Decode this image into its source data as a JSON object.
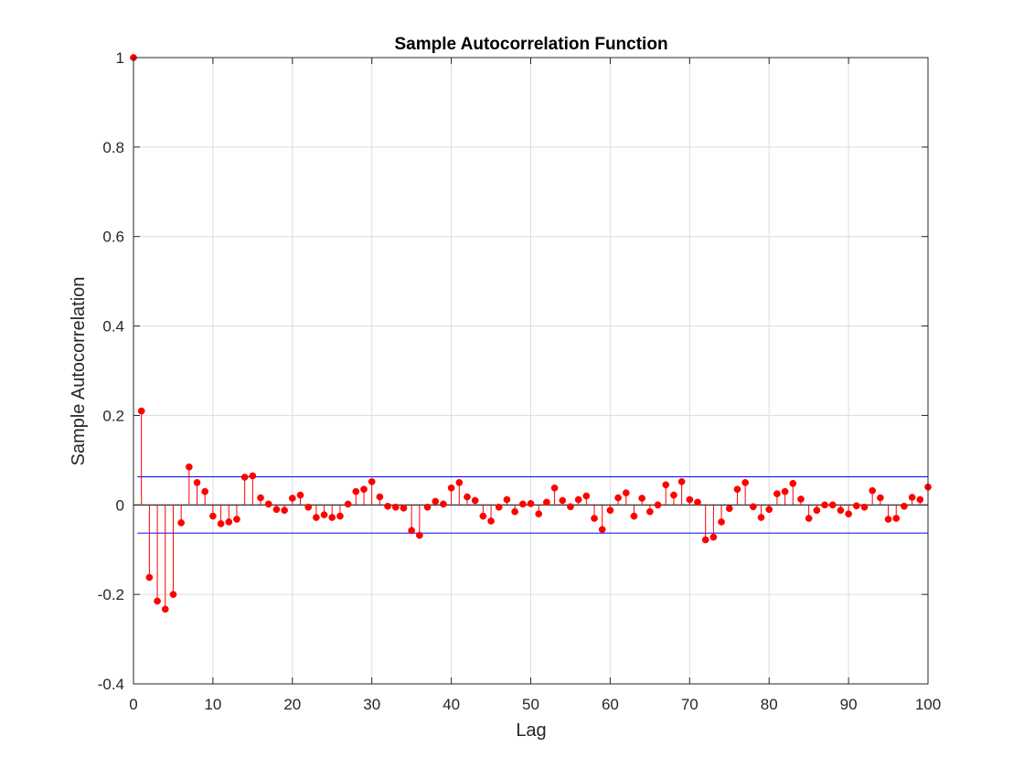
{
  "chart_data": {
    "type": "stem",
    "title": "Sample Autocorrelation Function",
    "xlabel": "Lag",
    "ylabel": "Sample Autocorrelation",
    "xlim": [
      0,
      100
    ],
    "ylim": [
      -0.4,
      1
    ],
    "xticks": [
      0,
      10,
      20,
      30,
      40,
      50,
      60,
      70,
      80,
      90,
      100
    ],
    "yticks": [
      -0.4,
      -0.2,
      0,
      0.2,
      0.4,
      0.6,
      0.8,
      1
    ],
    "ytick_labels": [
      "-0.4",
      "-0.2",
      "0",
      "0.2",
      "0.4",
      "0.6",
      "0.8",
      "1"
    ],
    "grid": true,
    "confidence_bounds": [
      0.063,
      -0.063
    ],
    "colors": {
      "stem": "#ff0000",
      "bounds": "#0000ff",
      "grid": "#dcdcdc",
      "axes": "#262626",
      "zero_line": "#000000"
    },
    "lags": [
      0,
      1,
      2,
      3,
      4,
      5,
      6,
      7,
      8,
      9,
      10,
      11,
      12,
      13,
      14,
      15,
      16,
      17,
      18,
      19,
      20,
      21,
      22,
      23,
      24,
      25,
      26,
      27,
      28,
      29,
      30,
      31,
      32,
      33,
      34,
      35,
      36,
      37,
      38,
      39,
      40,
      41,
      42,
      43,
      44,
      45,
      46,
      47,
      48,
      49,
      50,
      51,
      52,
      53,
      54,
      55,
      56,
      57,
      58,
      59,
      60,
      61,
      62,
      63,
      64,
      65,
      66,
      67,
      68,
      69,
      70,
      71,
      72,
      73,
      74,
      75,
      76,
      77,
      78,
      79,
      80,
      81,
      82,
      83,
      84,
      85,
      86,
      87,
      88,
      89,
      90,
      91,
      92,
      93,
      94,
      95,
      96,
      97,
      98,
      99,
      100
    ],
    "values": [
      1.0,
      0.21,
      -0.162,
      -0.215,
      -0.233,
      -0.2,
      -0.04,
      0.085,
      0.05,
      0.03,
      -0.025,
      -0.042,
      -0.038,
      -0.032,
      0.062,
      0.065,
      0.016,
      0.002,
      -0.01,
      -0.012,
      0.015,
      0.022,
      -0.005,
      -0.028,
      -0.022,
      -0.028,
      -0.025,
      0.002,
      0.03,
      0.035,
      0.052,
      0.018,
      -0.003,
      -0.005,
      -0.007,
      -0.057,
      -0.068,
      -0.005,
      0.008,
      0.002,
      0.038,
      0.05,
      0.018,
      0.01,
      -0.025,
      -0.036,
      -0.005,
      0.012,
      -0.015,
      0.002,
      0.003,
      -0.02,
      0.006,
      0.038,
      0.01,
      -0.004,
      0.012,
      0.02,
      -0.03,
      -0.055,
      -0.012,
      0.016,
      0.027,
      -0.025,
      0.015,
      -0.015,
      0.0,
      0.045,
      0.022,
      0.052,
      0.012,
      0.006,
      -0.078,
      -0.072,
      -0.038,
      -0.008,
      0.035,
      0.05,
      -0.004,
      -0.028,
      -0.01,
      0.025,
      0.03,
      0.048,
      0.013,
      -0.03,
      -0.012,
      0.0,
      0.0,
      -0.012,
      -0.02,
      -0.002,
      -0.005,
      0.032,
      0.016,
      -0.032,
      -0.03,
      -0.003,
      0.017,
      0.012,
      0.04
    ]
  }
}
